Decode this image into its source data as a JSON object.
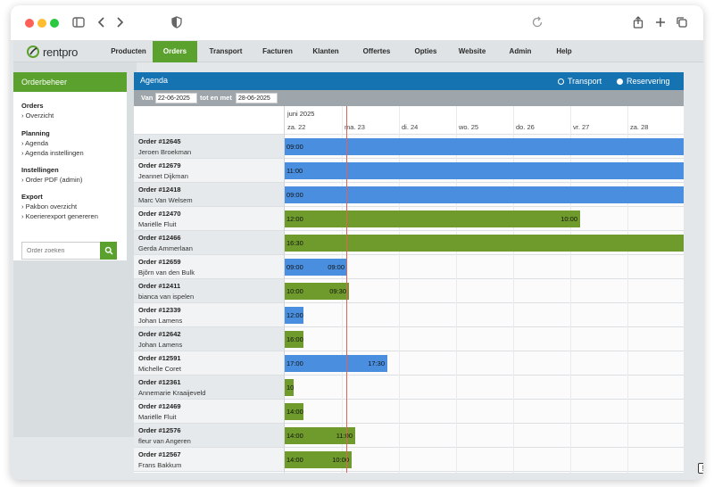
{
  "nav": {
    "logo": "rentpro",
    "items": [
      "Producten",
      "Orders",
      "Transport",
      "Facturen",
      "Klanten",
      "Offertes",
      "Opties",
      "Website",
      "Admin",
      "Help"
    ],
    "active": "Orders"
  },
  "sidebar": {
    "title": "Orderbeheer",
    "sections": [
      {
        "heading": "Orders",
        "links": [
          "Overzicht"
        ]
      },
      {
        "heading": "Planning",
        "links": [
          "Agenda",
          "Agenda instellingen"
        ]
      },
      {
        "heading": "Instellingen",
        "links": [
          "Order PDF (admin)"
        ]
      },
      {
        "heading": "Export",
        "links": [
          "Pakbon overzicht",
          "Koerierexport genereren"
        ]
      }
    ],
    "search_placeholder": "Order zoeken"
  },
  "agenda": {
    "title": "Agenda",
    "radio_transport": "Transport",
    "radio_reservering": "Reservering",
    "filter": {
      "from_label": "Van",
      "from_value": "22-06-2025",
      "to_label": "tot en met",
      "to_value": "28-06-2025"
    },
    "month": "juni 2025",
    "days": [
      "za. 22",
      "ma. 23",
      "di. 24",
      "wo. 25",
      "do. 26",
      "vr. 27",
      "za. 28"
    ],
    "rows": [
      {
        "order": "Order #12645",
        "name": "Jeroen Broekman",
        "bar": {
          "color": "blue",
          "start": "09:00",
          "end": ""
        }
      },
      {
        "order": "Order #12679",
        "name": "Jeannet Dijkman",
        "bar": {
          "color": "blue",
          "start": "11:00",
          "end": ""
        }
      },
      {
        "order": "Order #12418",
        "name": "Marc Van Welsem",
        "bar": {
          "color": "blue",
          "start": "09:00",
          "end": ""
        }
      },
      {
        "order": "Order #12470",
        "name": "Mariëlle Fluit",
        "bar": {
          "color": "green",
          "start": "12:00",
          "end": "10:00"
        }
      },
      {
        "order": "Order #12466",
        "name": "Gerda Ammerlaan",
        "bar": {
          "color": "green",
          "start": "16:30",
          "end": ""
        }
      },
      {
        "order": "Order #12659",
        "name": "Bjõrn van den Bulk",
        "bar": {
          "color": "blue",
          "start": "09:00",
          "end": "09:00"
        }
      },
      {
        "order": "Order #12411",
        "name": "bianca van ispelen",
        "bar": {
          "color": "green",
          "start": "10:00",
          "end": "09:30"
        }
      },
      {
        "order": "Order #12339",
        "name": "Johan Lamens",
        "bar": {
          "color": "blue",
          "start": "12:00",
          "end": ""
        }
      },
      {
        "order": "Order #12642",
        "name": "Johan Lamens",
        "bar": {
          "color": "green",
          "start": "16:00",
          "end": ""
        }
      },
      {
        "order": "Order #12591",
        "name": "Michelle Coret",
        "bar": {
          "color": "blue",
          "start": "17:00",
          "end": "17:30"
        }
      },
      {
        "order": "Order #12361",
        "name": "Annemarie Kraaijeveld",
        "bar": {
          "color": "green",
          "start": "10",
          "end": ""
        }
      },
      {
        "order": "Order #12469",
        "name": "Mariëlle Fluit",
        "bar": {
          "color": "green",
          "start": "14:00",
          "end": ""
        }
      },
      {
        "order": "Order #12576",
        "name": "fleur van Angeren",
        "bar": {
          "color": "green",
          "start": "14:00",
          "end": "11:00"
        }
      },
      {
        "order": "Order #12567",
        "name": "Frans Bakkum",
        "bar": {
          "color": "green",
          "start": "14:00",
          "end": "10:00"
        }
      }
    ]
  },
  "warning_badge": "!",
  "colors": {
    "brand_green": "#5aa12d",
    "agenda_blue": "#1573b2",
    "bar_blue": "#4a8fdf",
    "bar_green": "#6e9b2b",
    "today_line": "#e2625a"
  }
}
